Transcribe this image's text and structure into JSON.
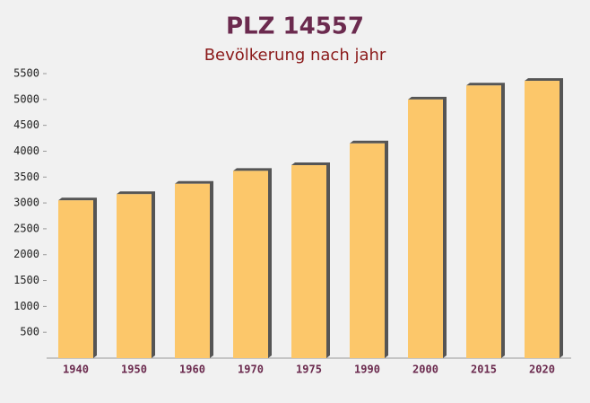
{
  "chart_data": {
    "type": "bar",
    "title": "PLZ 14557",
    "subtitle": "Bevölkerung nach jahr",
    "categories": [
      "1940",
      "1950",
      "1960",
      "1970",
      "1975",
      "1990",
      "2000",
      "2015",
      "2020"
    ],
    "values": [
      3050,
      3170,
      3370,
      3620,
      3730,
      4150,
      5000,
      5270,
      5360
    ],
    "color": "#fcc76a",
    "ylim": [
      0,
      5500
    ],
    "yticks": [
      500,
      1000,
      1500,
      2000,
      2500,
      3000,
      3500,
      4000,
      4500,
      5000,
      5500
    ]
  }
}
